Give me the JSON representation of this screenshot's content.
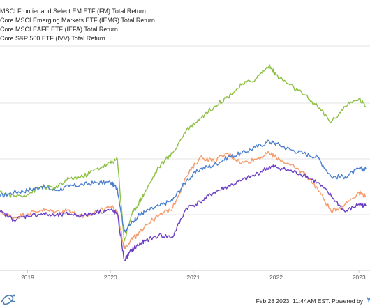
{
  "chart_data": {
    "type": "line",
    "title": "",
    "xlabel": "",
    "ylabel": "",
    "x_tick_labels": [
      "2019",
      "2020",
      "2021",
      "2022",
      "2023"
    ],
    "x_range": [
      "2018-09",
      "2023-02"
    ],
    "grid": "horizontal",
    "legend_placement": "top-left",
    "series": [
      {
        "name": "MSCI Frontier and Select EM ETF (FM) Total Return",
        "color": "#4a7fd0",
        "points": [
          [
            "2018-09",
            -2
          ],
          [
            "2018-11",
            0
          ],
          [
            "2019-01",
            1
          ],
          [
            "2019-03",
            3
          ],
          [
            "2019-05",
            1
          ],
          [
            "2019-07",
            3
          ],
          [
            "2019-09",
            4
          ],
          [
            "2019-11",
            5
          ],
          [
            "2020-01",
            5
          ],
          [
            "2020-02",
            2
          ],
          [
            "2020-03",
            -20
          ],
          [
            "2020-04",
            -16
          ],
          [
            "2020-05",
            -12
          ],
          [
            "2020-06",
            -10
          ],
          [
            "2020-08",
            -7
          ],
          [
            "2020-10",
            -4
          ],
          [
            "2020-12",
            6
          ],
          [
            "2021-02",
            12
          ],
          [
            "2021-04",
            14
          ],
          [
            "2021-06",
            18
          ],
          [
            "2021-08",
            20
          ],
          [
            "2021-10",
            23
          ],
          [
            "2021-12",
            26
          ],
          [
            "2022-01",
            25
          ],
          [
            "2022-03",
            22
          ],
          [
            "2022-05",
            20
          ],
          [
            "2022-07",
            18
          ],
          [
            "2022-09",
            8
          ],
          [
            "2022-11",
            8
          ],
          [
            "2023-01",
            12
          ],
          [
            "2023-02",
            12
          ]
        ]
      },
      {
        "name": "Core MSCI Emerging Markets ETF (IEMG) Total Return",
        "color": "#f59a68",
        "points": [
          [
            "2018-09",
            -10
          ],
          [
            "2018-11",
            -13
          ],
          [
            "2019-01",
            -11
          ],
          [
            "2019-03",
            -9
          ],
          [
            "2019-05",
            -10
          ],
          [
            "2019-07",
            -9
          ],
          [
            "2019-09",
            -13
          ],
          [
            "2019-11",
            -10
          ],
          [
            "2020-01",
            -7
          ],
          [
            "2020-02",
            -10
          ],
          [
            "2020-03",
            -29
          ],
          [
            "2020-04",
            -24
          ],
          [
            "2020-05",
            -22
          ],
          [
            "2020-06",
            -17
          ],
          [
            "2020-08",
            -12
          ],
          [
            "2020-10",
            -8
          ],
          [
            "2020-12",
            8
          ],
          [
            "2021-02",
            18
          ],
          [
            "2021-04",
            16
          ],
          [
            "2021-06",
            20
          ],
          [
            "2021-08",
            15
          ],
          [
            "2021-10",
            17
          ],
          [
            "2021-12",
            20
          ],
          [
            "2022-01",
            18
          ],
          [
            "2022-03",
            14
          ],
          [
            "2022-05",
            10
          ],
          [
            "2022-07",
            2
          ],
          [
            "2022-09",
            -10
          ],
          [
            "2022-11",
            -6
          ],
          [
            "2023-01",
            0
          ],
          [
            "2023-02",
            -2
          ]
        ]
      },
      {
        "name": "Core MSCI EAFE ETF (IEFA) Total Return",
        "color": "#6b3ec6",
        "points": [
          [
            "2018-09",
            -10
          ],
          [
            "2018-11",
            -14
          ],
          [
            "2019-01",
            -12
          ],
          [
            "2019-03",
            -11
          ],
          [
            "2019-05",
            -12
          ],
          [
            "2019-07",
            -11
          ],
          [
            "2019-09",
            -12
          ],
          [
            "2019-11",
            -10
          ],
          [
            "2020-01",
            -9
          ],
          [
            "2020-02",
            -11
          ],
          [
            "2020-03",
            -35
          ],
          [
            "2020-04",
            -30
          ],
          [
            "2020-05",
            -27
          ],
          [
            "2020-06",
            -25
          ],
          [
            "2020-08",
            -22
          ],
          [
            "2020-10",
            -23
          ],
          [
            "2020-12",
            -8
          ],
          [
            "2021-02",
            -5
          ],
          [
            "2021-04",
            0
          ],
          [
            "2021-06",
            3
          ],
          [
            "2021-08",
            6
          ],
          [
            "2021-10",
            9
          ],
          [
            "2021-12",
            13
          ],
          [
            "2022-01",
            13
          ],
          [
            "2022-03",
            11
          ],
          [
            "2022-05",
            9
          ],
          [
            "2022-07",
            5
          ],
          [
            "2022-09",
            -2
          ],
          [
            "2022-11",
            -10
          ],
          [
            "2023-01",
            -6
          ],
          [
            "2023-02",
            -7
          ]
        ]
      },
      {
        "name": "Core S&P 500 ETF (IVV) Total Return",
        "color": "#8cc043",
        "points": [
          [
            "2018-09",
            0
          ],
          [
            "2018-11",
            -2
          ],
          [
            "2019-01",
            -1
          ],
          [
            "2019-03",
            3
          ],
          [
            "2019-05",
            2
          ],
          [
            "2019-07",
            7
          ],
          [
            "2019-09",
            8
          ],
          [
            "2019-11",
            12
          ],
          [
            "2020-01",
            15
          ],
          [
            "2020-02",
            17
          ],
          [
            "2020-03",
            -25
          ],
          [
            "2020-04",
            -12
          ],
          [
            "2020-05",
            -6
          ],
          [
            "2020-06",
            0
          ],
          [
            "2020-08",
            13
          ],
          [
            "2020-10",
            20
          ],
          [
            "2020-12",
            32
          ],
          [
            "2021-02",
            38
          ],
          [
            "2021-04",
            44
          ],
          [
            "2021-06",
            49
          ],
          [
            "2021-08",
            55
          ],
          [
            "2021-10",
            58
          ],
          [
            "2021-12",
            65
          ],
          [
            "2022-01",
            60
          ],
          [
            "2022-03",
            55
          ],
          [
            "2022-05",
            50
          ],
          [
            "2022-07",
            44
          ],
          [
            "2022-09",
            36
          ],
          [
            "2022-11",
            44
          ],
          [
            "2023-01",
            48
          ],
          [
            "2023-02",
            44
          ]
        ]
      }
    ]
  },
  "footer": {
    "text": "Feb 28 2023, 11:44AM EST. Powered by",
    "brand_letter": "Y"
  }
}
